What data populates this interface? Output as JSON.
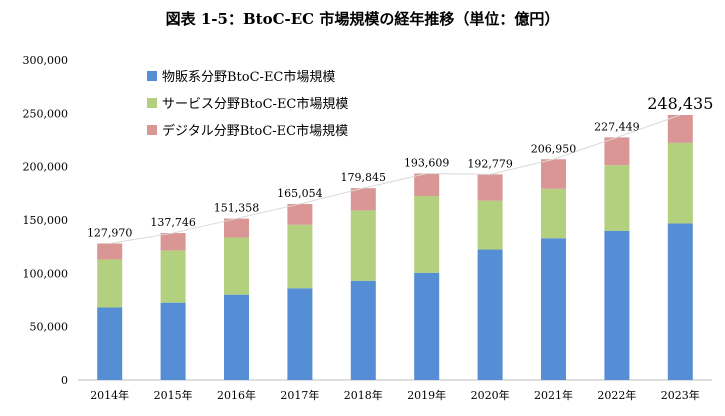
{
  "title": "図表 1-5：BtoC-EC 市場規模の経年推移（単位：億円）",
  "chart_data": {
    "type": "bar",
    "stacked": true,
    "categories": [
      "2014年",
      "2015年",
      "2016年",
      "2017年",
      "2018年",
      "2019年",
      "2020年",
      "2021年",
      "2022年",
      "2023年"
    ],
    "series": [
      {
        "name": "物販系分野BtoC-EC市場規模",
        "color": "#558ed5",
        "values": [
          68000,
          72500,
          80000,
          86000,
          93000,
          100500,
          122300,
          132900,
          139900,
          146800
        ]
      },
      {
        "name": "サービス分野BtoC-EC市場規模",
        "color": "#b3d07f",
        "values": [
          45000,
          49000,
          53500,
          59500,
          66000,
          72000,
          45800,
          46400,
          61500,
          75500
        ]
      },
      {
        "name": "デジタル分野BtoC-EC市場規模",
        "color": "#da9694",
        "values": [
          14970,
          16246,
          17858,
          19554,
          20845,
          21109,
          24679,
          27650,
          26049,
          26135
        ]
      }
    ],
    "totals": [
      127970,
      137746,
      151358,
      165054,
      179845,
      193609,
      192779,
      206950,
      227449,
      248435
    ],
    "total_labels": [
      "127,970",
      "137,746",
      "151,358",
      "165,054",
      "179,845",
      "193,609",
      "192,779",
      "206,950",
      "227,449",
      "248,435"
    ],
    "ylim": [
      0,
      300000
    ],
    "yticks": [
      0,
      50000,
      100000,
      150000,
      200000,
      250000,
      300000
    ],
    "ytick_labels": [
      "0",
      "50,000",
      "100,000",
      "150,000",
      "200,000",
      "250,000",
      "300,000"
    ],
    "grid": false,
    "legend_position": "top-left",
    "xlabel": "",
    "ylabel": ""
  }
}
